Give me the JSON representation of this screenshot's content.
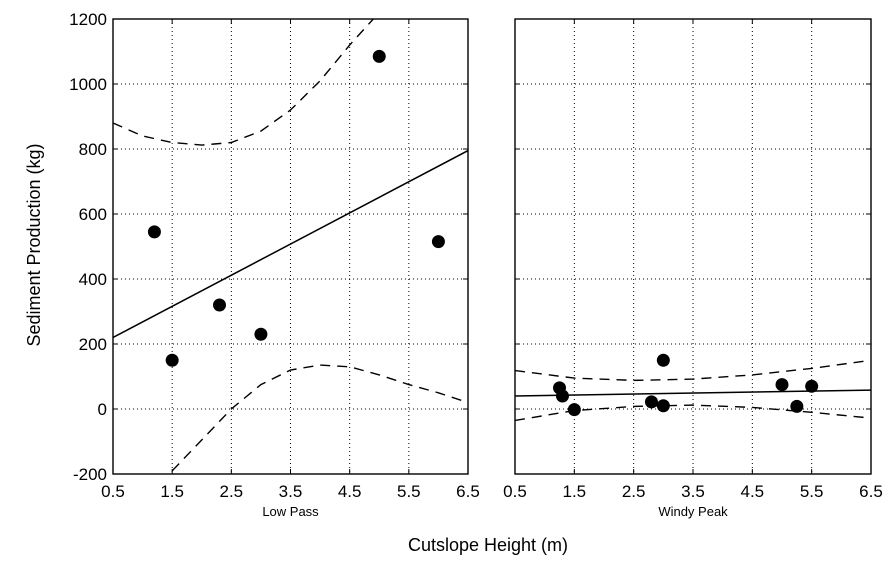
{
  "chart_data": {
    "type": "scatter",
    "ylabel": "Sediment Production (kg)",
    "xlabel": "Cutslope Height (m)",
    "panels": [
      {
        "label": "Low Pass",
        "xlim": [
          0.5,
          6.5
        ],
        "ylim": [
          -200,
          1200
        ],
        "x_ticks": [
          0.5,
          1.5,
          2.5,
          3.5,
          4.5,
          5.5,
          6.5
        ],
        "y_ticks": [
          -200,
          0,
          200,
          400,
          600,
          800,
          1000,
          1200
        ],
        "grid": true,
        "points": [
          {
            "x": 1.2,
            "y": 545
          },
          {
            "x": 1.5,
            "y": 150
          },
          {
            "x": 2.3,
            "y": 320
          },
          {
            "x": 3.0,
            "y": 230
          },
          {
            "x": 5.0,
            "y": 1085
          },
          {
            "x": 6.0,
            "y": 515
          }
        ],
        "fit_line": {
          "x": [
            0.5,
            6.5
          ],
          "y": [
            220,
            795
          ]
        },
        "confidence_upper": {
          "x": [
            0.5,
            1.0,
            1.5,
            2.0,
            2.5,
            3.0,
            3.5,
            4.0,
            4.5,
            4.9
          ],
          "y": [
            880,
            840,
            820,
            812,
            820,
            855,
            920,
            1010,
            1120,
            1200
          ]
        },
        "confidence_lower": {
          "x": [
            1.5,
            2.0,
            2.5,
            3.0,
            3.5,
            4.0,
            4.5,
            5.0,
            5.5,
            6.0,
            6.5
          ],
          "y": [
            -190,
            -95,
            0,
            75,
            120,
            135,
            130,
            105,
            75,
            50,
            20
          ]
        }
      },
      {
        "label": "Windy Peak",
        "xlim": [
          0.5,
          6.5
        ],
        "ylim": [
          -200,
          1200
        ],
        "x_ticks": [
          0.5,
          1.5,
          2.5,
          3.5,
          4.5,
          5.5,
          6.5
        ],
        "grid": true,
        "points": [
          {
            "x": 1.25,
            "y": 65
          },
          {
            "x": 1.3,
            "y": 40
          },
          {
            "x": 1.5,
            "y": -2
          },
          {
            "x": 2.8,
            "y": 22
          },
          {
            "x": 3.0,
            "y": 150
          },
          {
            "x": 3.0,
            "y": 10
          },
          {
            "x": 5.0,
            "y": 75
          },
          {
            "x": 5.25,
            "y": 8
          },
          {
            "x": 5.5,
            "y": 70
          }
        ],
        "fit_line": {
          "x": [
            0.5,
            6.5
          ],
          "y": [
            40,
            58
          ]
        },
        "confidence_upper": {
          "x": [
            0.5,
            1.5,
            2.5,
            3.5,
            4.5,
            5.5,
            6.5
          ],
          "y": [
            118,
            95,
            88,
            92,
            105,
            125,
            150
          ]
        },
        "confidence_lower": {
          "x": [
            0.5,
            1.5,
            2.5,
            3.5,
            4.5,
            5.5,
            6.5
          ],
          "y": [
            -35,
            -5,
            8,
            12,
            5,
            -10,
            -28
          ]
        }
      }
    ]
  }
}
